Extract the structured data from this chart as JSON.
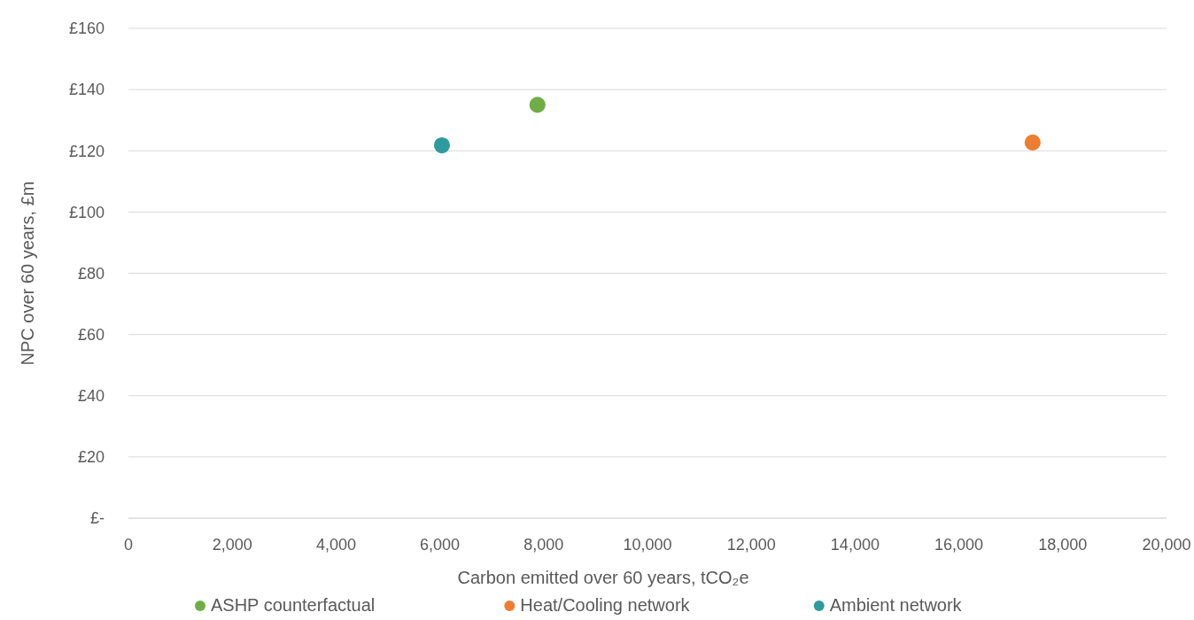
{
  "chart_data": {
    "type": "scatter",
    "xlabel": "Carbon emitted over 60 years, tCO₂e",
    "ylabel": "NPC over 60 years, £m",
    "xlim": [
      0,
      20000
    ],
    "xticks": [
      0,
      {
        "value": 2000,
        "label": "2,000"
      },
      {
        "value": 4000,
        "label": "4,000"
      },
      {
        "value": 6000,
        "label": "6,000"
      },
      {
        "value": 8000,
        "label": "8,000"
      },
      {
        "value": 10000,
        "label": "10,000"
      },
      {
        "value": 12000,
        "label": "12,000"
      },
      {
        "value": 14000,
        "label": "14,000"
      },
      {
        "value": 16000,
        "label": "16,000"
      },
      {
        "value": 18000,
        "label": "18,000"
      },
      {
        "value": 20000,
        "label": "20,000"
      }
    ],
    "ylim": [
      0,
      160
    ],
    "yticks": [
      {
        "value": 0,
        "label": "£-"
      },
      {
        "value": 20,
        "label": "£20"
      },
      {
        "value": 40,
        "label": "£40"
      },
      {
        "value": 60,
        "label": "£60"
      },
      {
        "value": 80,
        "label": "£80"
      },
      {
        "value": 100,
        "label": "£100"
      },
      {
        "value": 120,
        "label": "£120"
      },
      {
        "value": 140,
        "label": "£140"
      },
      {
        "value": 160,
        "label": "£160"
      }
    ],
    "grid": "y",
    "legend": "bottom",
    "marker": "circle",
    "series": [
      {
        "name": "ASHP counterfactual",
        "color": "#70ad47",
        "x": [
          7880
        ],
        "values": [
          135
        ]
      },
      {
        "name": "Heat/Cooling network",
        "color": "#ed7d31",
        "x": [
          17420
        ],
        "values": [
          122.7
        ]
      },
      {
        "name": "Ambient network",
        "color": "#2e9b9f",
        "x": [
          6040
        ],
        "values": [
          121.8
        ]
      }
    ]
  }
}
